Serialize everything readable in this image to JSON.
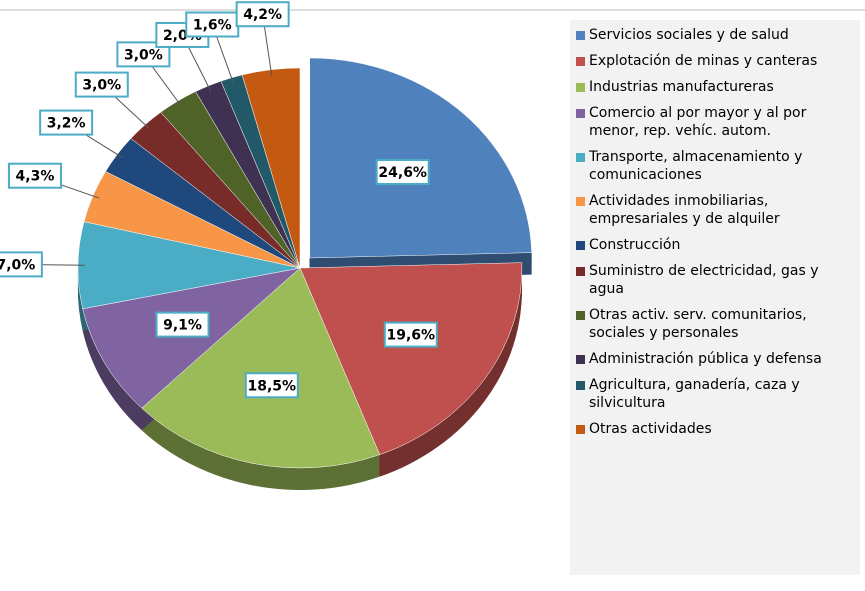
{
  "chart_data": {
    "type": "pie",
    "categories": [
      "Servicios sociales y de salud",
      "Explotación de minas y canteras",
      "Industrias manufactureras",
      "Comercio al por mayor y al por menor, rep. vehíc. autom.",
      "Transporte, almacenamiento y comunicaciones",
      "Actividades inmobiliarias, empresariales y de alquiler",
      "Construcción",
      "Suministro de electricidad, gas y agua",
      "Otras activ. serv. comunitarios, sociales y personales",
      "Administración pública y defensa",
      "Agricultura, ganadería, caza y silvicultura",
      "Otras actividades"
    ],
    "values": [
      24.6,
      19.6,
      18.5,
      9.1,
      7.0,
      4.3,
      3.2,
      3.0,
      3.0,
      2.0,
      1.6,
      4.2
    ],
    "value_labels": [
      "24,6%",
      "19,6%",
      "18,5%",
      "9,1%",
      "7,0%",
      "4,3%",
      "3,2%",
      "3,0%",
      "3,0%",
      "2,0%",
      "1,6%",
      "4,2%"
    ],
    "colors": [
      "#4f81bd",
      "#c0504d",
      "#9bbb59",
      "#8064a2",
      "#4bacc6",
      "#f79646",
      "#1f497d",
      "#772c2a",
      "#4f6228",
      "#3f3151",
      "#215968",
      "#c45911"
    ],
    "legend": "right"
  }
}
